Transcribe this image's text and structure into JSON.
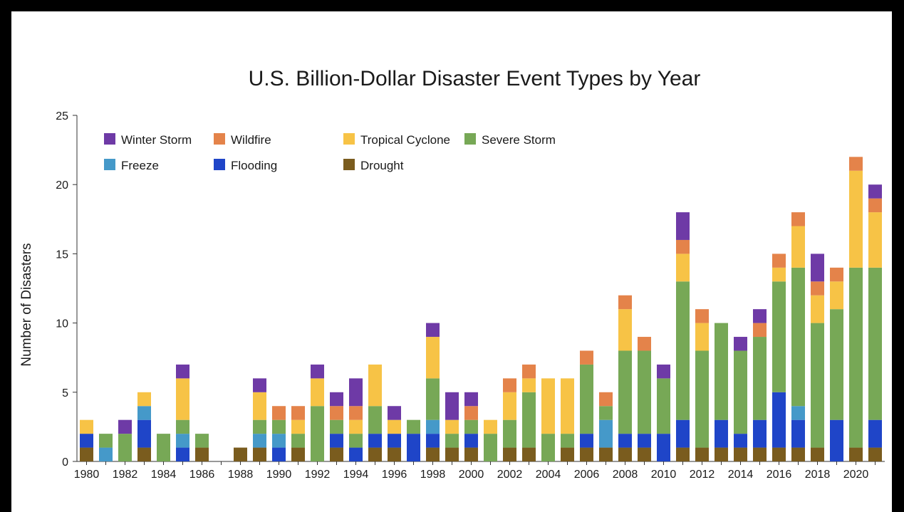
{
  "chart_data": {
    "type": "bar",
    "stacked": true,
    "title": "U.S. Billion-Dollar Disaster Event Types by Year",
    "xlabel": "",
    "ylabel": "Number of Disasters",
    "ylim": [
      0,
      25
    ],
    "yticks": [
      "0",
      "5",
      "10",
      "15",
      "20",
      "25"
    ],
    "grid": false,
    "legend_position": "top-left",
    "categories": [
      "1980",
      "1981",
      "1982",
      "1983",
      "1984",
      "1985",
      "1986",
      "1987",
      "1988",
      "1989",
      "1990",
      "1991",
      "1992",
      "1993",
      "1994",
      "1995",
      "1996",
      "1997",
      "1998",
      "1999",
      "2000",
      "2001",
      "2002",
      "2003",
      "2004",
      "2005",
      "2006",
      "2007",
      "2008",
      "2009",
      "2010",
      "2011",
      "2012",
      "2013",
      "2014",
      "2015",
      "2016",
      "2017",
      "2018",
      "2019",
      "2020",
      "2021"
    ],
    "xtick_labels": [
      "1980",
      "1982",
      "1984",
      "1986",
      "1988",
      "1990",
      "1992",
      "1994",
      "1996",
      "1998",
      "2000",
      "2002",
      "2004",
      "2006",
      "2008",
      "2010",
      "2012",
      "2014",
      "2016",
      "2018",
      "2020"
    ],
    "series": [
      {
        "name": "Drought",
        "color": "#7a5c1e",
        "values": [
          1,
          0,
          0,
          1,
          0,
          0,
          1,
          0,
          1,
          1,
          0,
          1,
          0,
          1,
          0,
          1,
          1,
          0,
          1,
          1,
          1,
          0,
          1,
          1,
          0,
          1,
          1,
          1,
          1,
          1,
          0,
          1,
          1,
          1,
          1,
          1,
          1,
          1,
          1,
          0,
          1,
          1
        ]
      },
      {
        "name": "Flooding",
        "color": "#1f45c8",
        "values": [
          1,
          0,
          0,
          2,
          0,
          1,
          0,
          0,
          0,
          0,
          1,
          0,
          0,
          1,
          1,
          1,
          1,
          2,
          1,
          0,
          1,
          0,
          0,
          0,
          0,
          0,
          1,
          0,
          1,
          1,
          2,
          2,
          0,
          2,
          1,
          2,
          4,
          2,
          0,
          3,
          0,
          2
        ]
      },
      {
        "name": "Freeze",
        "color": "#4599c9",
        "values": [
          0,
          1,
          0,
          1,
          0,
          1,
          0,
          0,
          0,
          1,
          1,
          0,
          0,
          0,
          0,
          0,
          0,
          0,
          1,
          0,
          0,
          0,
          0,
          0,
          0,
          0,
          0,
          2,
          0,
          0,
          0,
          0,
          0,
          0,
          0,
          0,
          0,
          1,
          0,
          0,
          0,
          0
        ]
      },
      {
        "name": "Severe Storm",
        "color": "#77a856",
        "values": [
          0,
          1,
          2,
          0,
          2,
          1,
          1,
          0,
          0,
          1,
          1,
          1,
          4,
          1,
          1,
          2,
          0,
          1,
          3,
          1,
          1,
          2,
          2,
          4,
          2,
          1,
          5,
          1,
          6,
          6,
          4,
          10,
          7,
          7,
          6,
          6,
          8,
          10,
          9,
          8,
          13,
          11
        ]
      },
      {
        "name": "Tropical Cyclone",
        "color": "#f7c346",
        "values": [
          1,
          0,
          0,
          1,
          0,
          3,
          0,
          0,
          0,
          2,
          0,
          1,
          2,
          0,
          1,
          3,
          1,
          0,
          3,
          1,
          0,
          1,
          2,
          1,
          4,
          4,
          0,
          0,
          3,
          0,
          0,
          2,
          2,
          0,
          0,
          0,
          1,
          3,
          2,
          2,
          7,
          4
        ]
      },
      {
        "name": "Wildfire",
        "color": "#e4834a",
        "values": [
          0,
          0,
          0,
          0,
          0,
          0,
          0,
          0,
          0,
          0,
          1,
          1,
          0,
          1,
          1,
          0,
          0,
          0,
          0,
          0,
          1,
          0,
          1,
          1,
          0,
          0,
          1,
          1,
          1,
          1,
          0,
          1,
          1,
          0,
          0,
          1,
          1,
          1,
          1,
          1,
          1,
          1
        ]
      },
      {
        "name": "Winter Storm",
        "color": "#6e3aa6",
        "values": [
          0,
          0,
          1,
          0,
          0,
          1,
          0,
          0,
          0,
          1,
          0,
          0,
          1,
          1,
          2,
          0,
          1,
          0,
          1,
          2,
          1,
          0,
          0,
          0,
          0,
          0,
          0,
          0,
          0,
          0,
          1,
          2,
          0,
          0,
          1,
          1,
          0,
          0,
          2,
          0,
          0,
          1
        ]
      }
    ],
    "legend": [
      {
        "name": "Winter Storm",
        "color": "#6e3aa6"
      },
      {
        "name": "Wildfire",
        "color": "#e4834a"
      },
      {
        "name": "Tropical Cyclone",
        "color": "#f7c346"
      },
      {
        "name": "Severe Storm",
        "color": "#77a856"
      },
      {
        "name": "Freeze",
        "color": "#4599c9"
      },
      {
        "name": "Flooding",
        "color": "#1f45c8"
      },
      {
        "name": "Drought",
        "color": "#7a5c1e"
      }
    ]
  }
}
